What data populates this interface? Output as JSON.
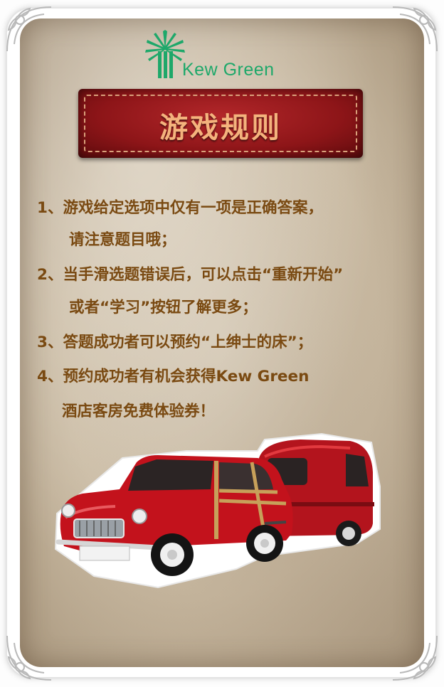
{
  "brand": {
    "name": "Kew Green",
    "color": "#1ea86a"
  },
  "banner": {
    "title": "游戏规则"
  },
  "rules": [
    {
      "lines": [
        "1、游戏给定选项中仅有一项是正确答案，",
        "请注意题目哦；"
      ]
    },
    {
      "lines": [
        "2、当手滑选题错误后，可以点击“重新开始”",
        "或者“学习”按钮了解更多；"
      ]
    },
    {
      "lines": [
        "3、答题成功者可以预约“上绅士的床”；"
      ]
    },
    {
      "lines": [
        "4、预约成功者有机会获得Kew Green",
        "酒店客房免费体验券！"
      ]
    }
  ],
  "illustration": {
    "subject": "red-car-with-caravan-icon"
  },
  "colors": {
    "banner_red": "#8d1518",
    "banner_text": "#f4b37d",
    "rule_text": "#7a4a12"
  }
}
